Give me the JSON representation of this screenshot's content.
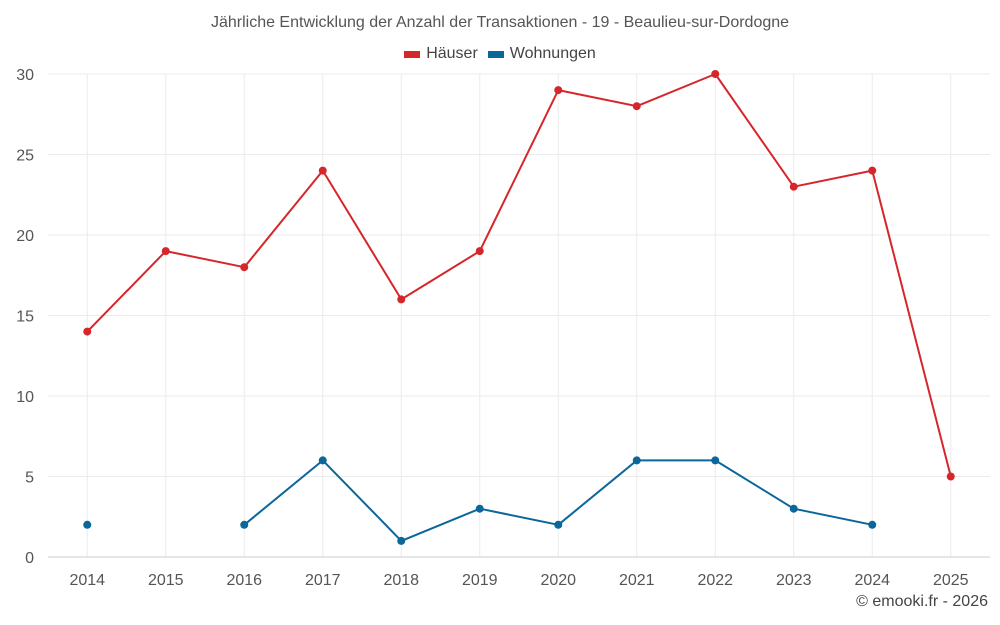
{
  "colors": {
    "haeuser": "#d7262b",
    "wohnungen": "#0b6699",
    "grid": "#ebebeb",
    "axis": "#cccccc"
  },
  "chart_data": {
    "type": "line",
    "title": "Jährliche Entwicklung der Anzahl der Transaktionen - 19 - Beaulieu-sur-Dordogne",
    "xlabel": "",
    "ylabel": "",
    "ylim": [
      0,
      30
    ],
    "yticks": [
      0,
      5,
      10,
      15,
      20,
      25,
      30
    ],
    "categories": [
      "2014",
      "2015",
      "2016",
      "2017",
      "2018",
      "2019",
      "2020",
      "2021",
      "2022",
      "2023",
      "2024",
      "2025"
    ],
    "legend_position": "top-center",
    "grid": true,
    "series": [
      {
        "name": "Häuser",
        "color": "#d7262b",
        "values": [
          14,
          19,
          18,
          24,
          16,
          19,
          29,
          28,
          30,
          23,
          24,
          5
        ]
      },
      {
        "name": "Wohnungen",
        "color": "#0b6699",
        "values": [
          2,
          null,
          2,
          6,
          1,
          3,
          2,
          6,
          6,
          3,
          2,
          null
        ]
      }
    ]
  },
  "credit": "© emooki.fr - 2026"
}
